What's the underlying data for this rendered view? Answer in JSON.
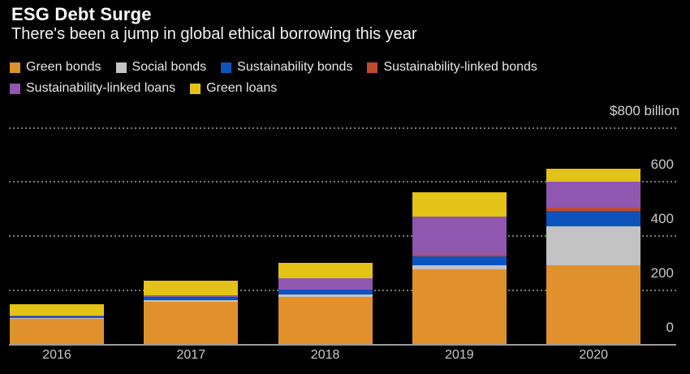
{
  "header": {
    "title": "ESG Debt Surge",
    "subtitle": "There's been a jump in global ethical borrowing this year"
  },
  "colors": {
    "background": "#000000",
    "title_text": "#ffffff",
    "legend_text": "#e8e8e8",
    "axis_text": "#c9c9c9",
    "gridline": "#7a7a7a",
    "zero_line": "#9a9a9a"
  },
  "chart_data": {
    "type": "bar",
    "stacked": true,
    "title": "ESG Debt Surge",
    "subtitle": "There's been a jump in global ethical borrowing this year",
    "unit": "USD billion",
    "categories": [
      "2016",
      "2017",
      "2018",
      "2019",
      "2020"
    ],
    "series": [
      {
        "name": "Green bonds",
        "color": "#e0912c",
        "values": [
          95,
          156,
          176,
          278,
          293
        ]
      },
      {
        "name": "Social bonds",
        "color": "#c3c3c3",
        "values": [
          3,
          8,
          7,
          14,
          143
        ]
      },
      {
        "name": "Sustainability bonds",
        "color": "#0d53bd",
        "values": [
          4,
          12,
          18,
          32,
          58
        ]
      },
      {
        "name": "Sustainability-linked bonds",
        "color": "#bf4a2e",
        "values": [
          0,
          0,
          0,
          6,
          12
        ]
      },
      {
        "name": "Sustainability-linked loans",
        "color": "#8f57b0",
        "values": [
          3,
          4,
          42,
          142,
          94
        ]
      },
      {
        "name": "Green loans",
        "color": "#e2c316",
        "values": [
          43,
          56,
          57,
          91,
          50
        ]
      }
    ],
    "y_axis": {
      "top_label": "$800 billion",
      "ticks": [
        0,
        200,
        400,
        600
      ],
      "gridlines": [
        200,
        400,
        600,
        800
      ],
      "max": 800,
      "side": "right"
    },
    "legend_rows": [
      [
        0,
        1,
        2,
        3
      ],
      [
        4,
        5
      ]
    ],
    "grid": "horizontal dotted",
    "legend_position": "top-left"
  }
}
